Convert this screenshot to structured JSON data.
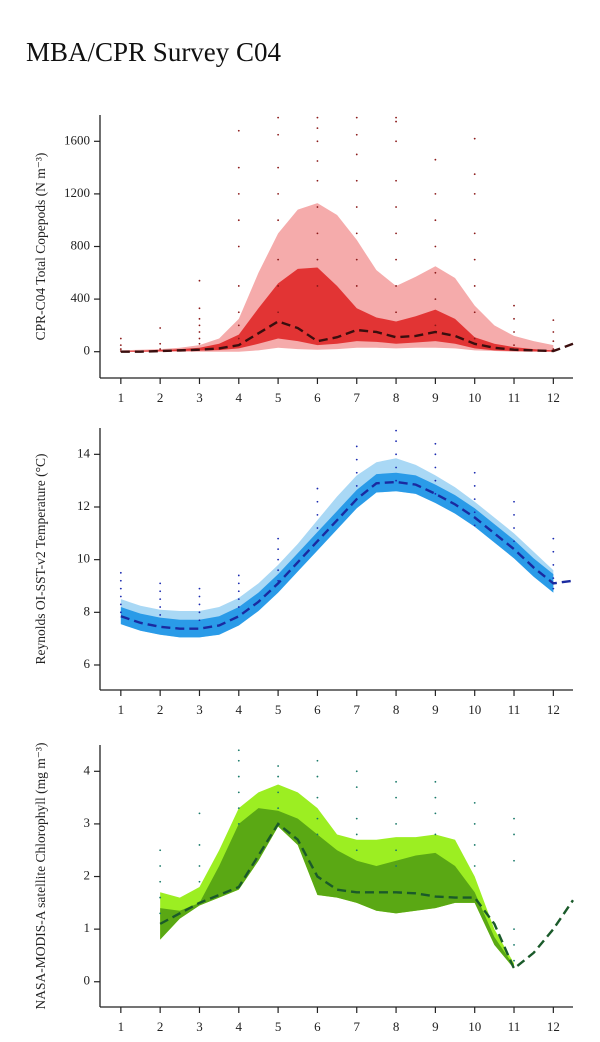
{
  "title": "MBA/CPR Survey C04",
  "chart_data": [
    {
      "type": "line",
      "ylabel": "CPR-C04 Total Copepods (N m⁻³)",
      "xlim": [
        0.47,
        12.5
      ],
      "ylim": [
        -200,
        1800
      ],
      "xticks": [
        1,
        2,
        3,
        4,
        5,
        6,
        7,
        8,
        9,
        10,
        11,
        12
      ],
      "yticks": [
        0,
        400,
        800,
        1200,
        1600
      ],
      "x": [
        1,
        1.5,
        2,
        2.5,
        3,
        3.5,
        4,
        4.5,
        5,
        5.5,
        6,
        6.5,
        7,
        7.5,
        8,
        8.5,
        9,
        9.5,
        10,
        10.5,
        11,
        11.5,
        12,
        12.5
      ],
      "bands": [
        {
          "color": "#f5abab",
          "upper": [
            10,
            15,
            20,
            30,
            50,
            100,
            250,
            600,
            900,
            1080,
            1130,
            1040,
            850,
            620,
            500,
            570,
            650,
            560,
            350,
            200,
            120,
            80,
            50,
            null
          ],
          "lower": [
            0,
            0,
            0,
            0,
            0,
            0,
            0,
            10,
            30,
            20,
            15,
            20,
            30,
            30,
            25,
            30,
            30,
            25,
            10,
            5,
            0,
            0,
            0,
            null
          ]
        },
        {
          "color": "#e23434",
          "upper": [
            5,
            8,
            12,
            20,
            30,
            60,
            130,
            330,
            520,
            630,
            640,
            500,
            330,
            260,
            230,
            270,
            320,
            250,
            110,
            60,
            35,
            20,
            10,
            null
          ],
          "lower": [
            0,
            0,
            2,
            5,
            8,
            12,
            25,
            60,
            100,
            80,
            50,
            60,
            80,
            75,
            60,
            70,
            80,
            60,
            25,
            10,
            5,
            2,
            1,
            null
          ]
        }
      ],
      "line": {
        "color": "#3a0e0e",
        "values": [
          0,
          0,
          5,
          10,
          15,
          25,
          50,
          140,
          230,
          180,
          80,
          110,
          165,
          150,
          110,
          120,
          150,
          120,
          60,
          30,
          15,
          10,
          5,
          60
        ]
      },
      "points_color": "#8b1a1a",
      "points": [
        {
          "x": 1,
          "values": [
            100,
            50,
            20,
            5
          ]
        },
        {
          "x": 2,
          "values": [
            180,
            60,
            20
          ]
        },
        {
          "x": 3,
          "values": [
            540,
            330,
            250,
            200,
            150,
            100,
            60
          ]
        },
        {
          "x": 4,
          "values": [
            1680,
            1400,
            1200,
            1000,
            800,
            500,
            300,
            200,
            100
          ]
        },
        {
          "x": 5,
          "values": [
            1780,
            1650,
            1400,
            1200,
            1000,
            700,
            500,
            300
          ]
        },
        {
          "x": 6,
          "values": [
            1780,
            1700,
            1600,
            1450,
            1300,
            1100,
            900,
            700,
            500
          ]
        },
        {
          "x": 7,
          "values": [
            1780,
            1650,
            1500,
            1300,
            1100,
            900,
            700,
            500
          ]
        },
        {
          "x": 8,
          "values": [
            1780,
            1750,
            1600,
            1300,
            1100,
            900,
            700,
            500,
            300
          ]
        },
        {
          "x": 9,
          "values": [
            1460,
            1200,
            1000,
            800,
            600,
            400,
            200
          ]
        },
        {
          "x": 10,
          "values": [
            1620,
            1350,
            1200,
            900,
            700,
            500,
            300,
            100
          ]
        },
        {
          "x": 11,
          "values": [
            350,
            250,
            150,
            50
          ]
        },
        {
          "x": 12,
          "values": [
            240,
            150,
            80,
            20
          ]
        }
      ]
    },
    {
      "type": "line",
      "ylabel": "Reynolds OI-SST-v2 Temperature (°C)",
      "xlim": [
        0.47,
        12.5
      ],
      "ylim": [
        5.05,
        15
      ],
      "xticks": [
        1,
        2,
        3,
        4,
        5,
        6,
        7,
        8,
        9,
        10,
        11,
        12
      ],
      "yticks": [
        6,
        8,
        10,
        12,
        14
      ],
      "x": [
        1,
        1.5,
        2,
        2.5,
        3,
        3.5,
        4,
        4.5,
        5,
        5.5,
        6,
        6.5,
        7,
        7.5,
        8,
        8.5,
        9,
        9.5,
        10,
        10.5,
        11,
        11.5,
        12,
        12.5
      ],
      "bands": [
        {
          "color": "#a9d8f5",
          "upper": [
            8.5,
            8.25,
            8.1,
            8.05,
            8.05,
            8.2,
            8.55,
            9.1,
            9.8,
            10.6,
            11.5,
            12.4,
            13.2,
            13.7,
            13.85,
            13.6,
            13.2,
            12.75,
            12.2,
            11.6,
            11.0,
            10.3,
            9.6,
            null
          ],
          "lower": [
            7.55,
            7.3,
            7.15,
            7.05,
            7.05,
            7.15,
            7.5,
            8.05,
            8.75,
            9.55,
            10.35,
            11.15,
            11.95,
            12.55,
            12.6,
            12.5,
            12.15,
            11.75,
            11.25,
            10.65,
            10.05,
            9.35,
            8.75,
            null
          ]
        },
        {
          "color": "#2a9be8",
          "upper": [
            8.2,
            7.95,
            7.8,
            7.72,
            7.72,
            7.85,
            8.2,
            8.75,
            9.45,
            10.25,
            11.05,
            11.85,
            12.65,
            13.25,
            13.3,
            13.2,
            12.85,
            12.45,
            11.95,
            11.35,
            10.75,
            10.05,
            9.45,
            null
          ],
          "lower": [
            7.55,
            7.3,
            7.15,
            7.05,
            7.05,
            7.15,
            7.5,
            8.05,
            8.75,
            9.55,
            10.35,
            11.15,
            11.95,
            12.55,
            12.6,
            12.5,
            12.15,
            11.75,
            11.25,
            10.65,
            10.05,
            9.35,
            8.75,
            null
          ]
        }
      ],
      "line": {
        "color": "#1a2aa0",
        "values": [
          7.85,
          7.6,
          7.45,
          7.38,
          7.38,
          7.5,
          7.85,
          8.4,
          9.1,
          9.9,
          10.7,
          11.5,
          12.3,
          12.9,
          12.95,
          12.85,
          12.5,
          12.1,
          11.6,
          11.0,
          10.4,
          9.7,
          9.1,
          9.2
        ]
      },
      "points_color": "#1a2ab0",
      "points": [
        {
          "x": 1,
          "values": [
            9.5,
            9.2,
            8.9,
            8.6,
            8.3,
            8.0
          ]
        },
        {
          "x": 2,
          "values": [
            9.1,
            8.8,
            8.5,
            8.2,
            7.9
          ]
        },
        {
          "x": 3,
          "values": [
            8.9,
            8.6,
            8.3,
            8.0,
            7.7
          ]
        },
        {
          "x": 4,
          "values": [
            9.4,
            9.1,
            8.8,
            8.5,
            8.2
          ]
        },
        {
          "x": 5,
          "values": [
            10.8,
            10.4,
            10.0,
            9.6,
            9.2
          ]
        },
        {
          "x": 6,
          "values": [
            12.7,
            12.2,
            11.7,
            11.2,
            10.7
          ]
        },
        {
          "x": 7,
          "values": [
            14.3,
            13.8,
            13.3,
            12.8,
            12.3
          ]
        },
        {
          "x": 8,
          "values": [
            14.9,
            14.5,
            14.0,
            13.5,
            13.0
          ]
        },
        {
          "x": 9,
          "values": [
            14.4,
            14.0,
            13.5,
            13.0,
            12.5
          ]
        },
        {
          "x": 10,
          "values": [
            13.3,
            12.8,
            12.3,
            11.8,
            11.3
          ]
        },
        {
          "x": 11,
          "values": [
            12.2,
            11.7,
            11.2,
            10.7
          ]
        },
        {
          "x": 12,
          "values": [
            10.8,
            10.3,
            9.8,
            9.3,
            8.9
          ]
        }
      ]
    },
    {
      "type": "line",
      "ylabel": "NASA-MODIS-A satellite Chlorophyll (mg m⁻³)",
      "xlim": [
        0.47,
        12.5
      ],
      "ylim": [
        -0.48,
        4.5
      ],
      "xticks": [
        1,
        2,
        3,
        4,
        5,
        6,
        7,
        8,
        9,
        10,
        11,
        12
      ],
      "yticks": [
        0,
        1,
        2,
        3,
        4
      ],
      "x": [
        1,
        1.5,
        2,
        2.5,
        3,
        3.5,
        4,
        4.5,
        5,
        5.5,
        6,
        6.5,
        7,
        7.5,
        8,
        8.5,
        9,
        9.5,
        10,
        10.5,
        11,
        11.5,
        12,
        12.5
      ],
      "bands": [
        {
          "color": "#9cee22",
          "upper": [
            null,
            null,
            1.7,
            1.6,
            1.8,
            2.5,
            3.3,
            3.6,
            3.75,
            3.6,
            3.3,
            2.8,
            2.7,
            2.7,
            2.75,
            2.75,
            2.8,
            2.7,
            2.0,
            1.0,
            0.35,
            null,
            null,
            null
          ],
          "lower": [
            null,
            null,
            0.8,
            1.2,
            1.45,
            1.6,
            1.75,
            2.3,
            2.95,
            2.6,
            1.65,
            1.6,
            1.5,
            1.35,
            1.3,
            1.35,
            1.4,
            1.5,
            1.5,
            0.7,
            0.25,
            null,
            null,
            null
          ]
        },
        {
          "color": "#5aa814",
          "upper": [
            null,
            null,
            1.4,
            1.35,
            1.5,
            2.2,
            3.0,
            3.3,
            3.25,
            3.1,
            2.8,
            2.5,
            2.3,
            2.2,
            2.3,
            2.4,
            2.45,
            2.2,
            1.7,
            0.85,
            0.3,
            null,
            null,
            null
          ],
          "lower": [
            null,
            null,
            0.8,
            1.2,
            1.45,
            1.6,
            1.75,
            2.3,
            2.95,
            2.6,
            1.65,
            1.6,
            1.5,
            1.35,
            1.3,
            1.35,
            1.4,
            1.5,
            1.5,
            0.7,
            0.25,
            null,
            null,
            null
          ]
        }
      ],
      "line": {
        "color": "#1a5a2a",
        "values": [
          null,
          null,
          1.1,
          1.3,
          1.5,
          1.65,
          1.8,
          2.4,
          3.0,
          2.7,
          2.0,
          1.75,
          1.7,
          1.7,
          1.7,
          1.68,
          1.62,
          1.6,
          1.6,
          1.1,
          0.25,
          0.55,
          1.0,
          1.55
        ]
      },
      "points_color": "#1a7a6a",
      "points": [
        {
          "x": 2,
          "values": [
            2.5,
            2.2,
            1.9,
            1.6,
            1.3
          ]
        },
        {
          "x": 3,
          "values": [
            3.2,
            2.6,
            2.2,
            1.9
          ]
        },
        {
          "x": 4,
          "values": [
            4.4,
            4.2,
            3.9,
            3.6,
            3.3,
            3.0
          ]
        },
        {
          "x": 5,
          "values": [
            4.1,
            3.9,
            3.6,
            3.3,
            3.0
          ]
        },
        {
          "x": 6,
          "values": [
            4.2,
            3.9,
            3.5,
            3.1,
            2.8
          ]
        },
        {
          "x": 7,
          "values": [
            4.0,
            3.7,
            3.1,
            2.8,
            2.5
          ]
        },
        {
          "x": 8,
          "values": [
            3.8,
            3.5,
            3.0,
            2.5,
            2.2
          ]
        },
        {
          "x": 9,
          "values": [
            3.8,
            3.5,
            3.2,
            2.8
          ]
        },
        {
          "x": 10,
          "values": [
            3.4,
            3.0,
            2.6,
            2.2
          ]
        },
        {
          "x": 11,
          "values": [
            3.1,
            2.8,
            2.3,
            1.0,
            0.7,
            0.4
          ]
        }
      ]
    }
  ]
}
